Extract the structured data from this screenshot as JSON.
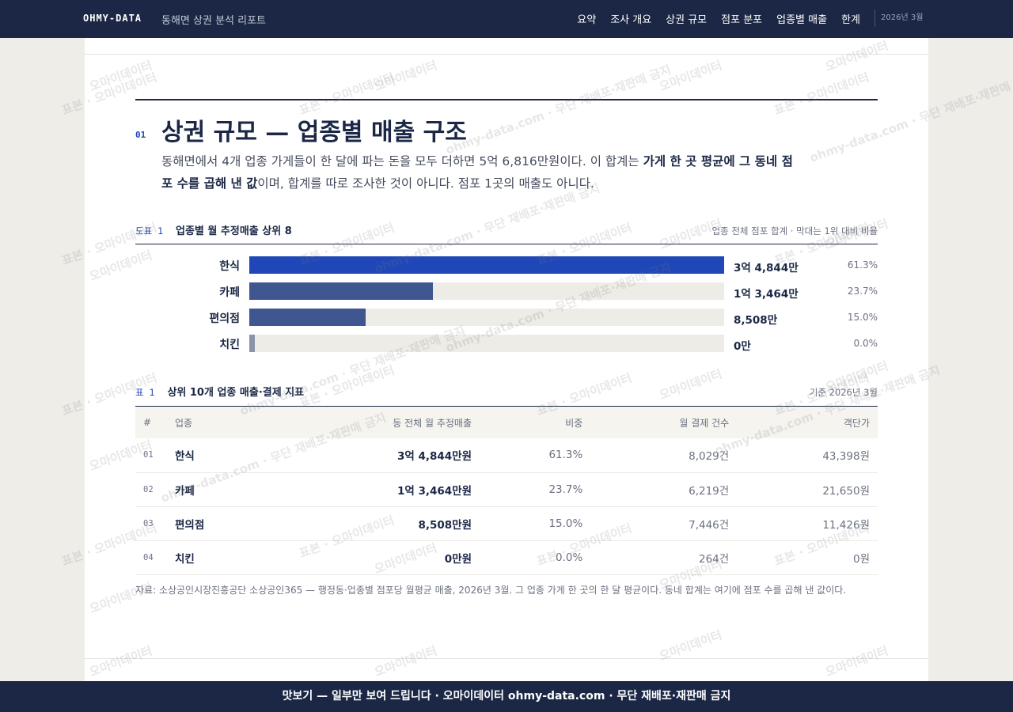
{
  "header": {
    "brand": "OHMY-DATA",
    "subtitle": "동해면 상권 분석 리포트",
    "nav": [
      "요약",
      "조사 개요",
      "상권 규모",
      "점포 분포",
      "업종별 매출",
      "한계"
    ],
    "date": "2026년 3월"
  },
  "section": {
    "number": "01",
    "title": "상권 규모 — 업종별 매출 구조",
    "intro": [
      "동해면에서 4개 업종 가게들이 한 달에 파는 돈을 모두 더하면 5억 6,816만원이다. 이 합계는 ",
      "가게 한 곳 평균에 그 동네 점포 수를 곱해 낸 값",
      "이며, 합계를 따로 조사한 것이 아니다. 점포 1곳의 매출도 아니다."
    ]
  },
  "figure": {
    "tag": "도표 1",
    "title": "업종별 월 추정매출 상위 8",
    "note": "업종 전체 점포 합계 · 막대는 1위 대비 비율",
    "categories": [
      "한식",
      "카페",
      "편의점",
      "치킨"
    ],
    "values": [
      34844,
      13464,
      8508,
      0
    ],
    "value_labels": [
      "3억 4,844만",
      "1억 3,464만",
      "8,508만",
      "0만"
    ],
    "shares": [
      "61.3%",
      "23.7%",
      "15.0%",
      "0.0%"
    ],
    "colors": [
      "#1f47b8",
      "#3f5690",
      "#3f5690",
      "#8a93a8"
    ]
  },
  "table": {
    "tag": "표 1",
    "title": "상위 10개 업종 매출·결제 지표",
    "note": "기준 2026년 3월",
    "columns": [
      "#",
      "업종",
      "동 전체 월 추정매출",
      "비중",
      "월 결제 건수",
      "객단가"
    ],
    "rows": [
      [
        "01",
        "한식",
        "3억 4,844만원",
        "61.3%",
        "8,029건",
        "43,398원"
      ],
      [
        "02",
        "카페",
        "1억 3,464만원",
        "23.7%",
        "6,219건",
        "21,650원"
      ],
      [
        "03",
        "편의점",
        "8,508만원",
        "15.0%",
        "7,446건",
        "11,426원"
      ],
      [
        "04",
        "치킨",
        "0만원",
        "0.0%",
        "264건",
        "0원"
      ]
    ],
    "source": "자료: 소상공인시장진흥공단 소상공인365 — 행정동·업종별 점포당 월평균 매출, 2026년 3월. 그 업종 가게 한 곳의 한 달 평균이다. 동네 합계는 여기에 점포 수를 곱해 낸 값이다."
  },
  "watermarks": [
    "표본 · 오마이데이터",
    "오마이데이터",
    "ohmy-data.com · 무단 재배포·재판매 금지"
  ],
  "footer": "맛보기 — 일부만 보여 드립니다 · 오마이데이터 ohmy-data.com · 무단 재배포·재판매 금지"
}
